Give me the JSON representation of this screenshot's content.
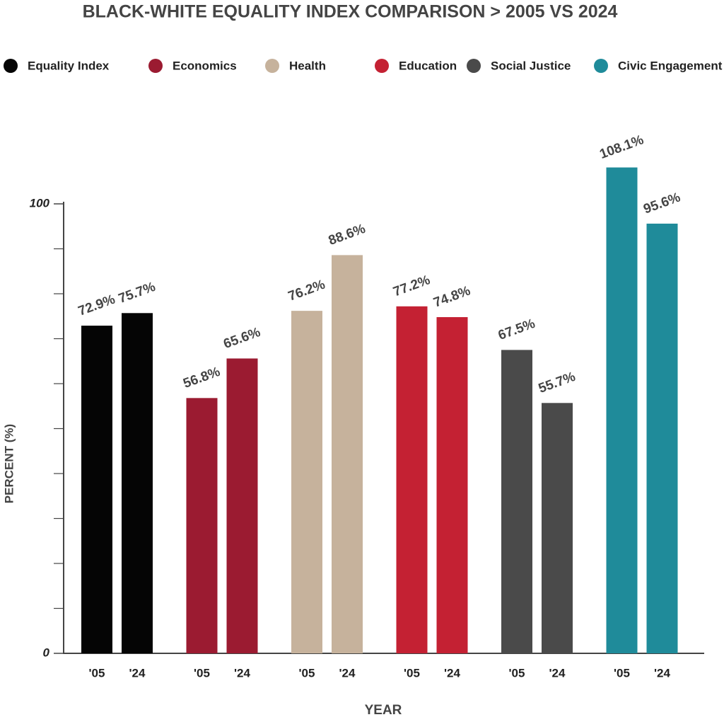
{
  "chart_data": {
    "type": "grouped-bar",
    "title": "BLACK-WHITE EQUALITY INDEX COMPARISON > 2005 VS 2024",
    "y_label": "PERCENT (%)",
    "x_label": "YEAR",
    "categories": [
      "'05",
      "'24"
    ],
    "series": [
      {
        "name": "Equality Index",
        "color": "#050505",
        "values": [
          72.9,
          75.7
        ],
        "value_labels": [
          "72.9%",
          "75.7%"
        ]
      },
      {
        "name": "Economics",
        "color": "#9b1b31",
        "values": [
          56.8,
          65.6
        ],
        "value_labels": [
          "56.8%",
          "65.6%"
        ]
      },
      {
        "name": "Health",
        "color": "#c6b29c",
        "values": [
          76.2,
          88.6
        ],
        "value_labels": [
          "76.2%",
          "88.6%"
        ]
      },
      {
        "name": "Education",
        "color": "#c42133",
        "values": [
          77.2,
          74.8
        ],
        "value_labels": [
          "77.2%",
          "74.8%"
        ]
      },
      {
        "name": "Social Justice",
        "color": "#4a4a4a",
        "values": [
          67.5,
          55.7
        ],
        "value_labels": [
          "67.5%",
          "55.7%"
        ]
      },
      {
        "name": "Civic Engagement",
        "color": "#1f8b9a",
        "values": [
          108.1,
          95.6
        ],
        "value_labels": [
          "108.1%",
          "95.6%"
        ]
      }
    ],
    "ylim": [
      0,
      100
    ],
    "yticks": [
      0,
      100
    ],
    "minor_yticks": [
      10,
      20,
      30,
      40,
      50,
      60,
      70,
      80,
      90
    ],
    "legend": "top"
  }
}
